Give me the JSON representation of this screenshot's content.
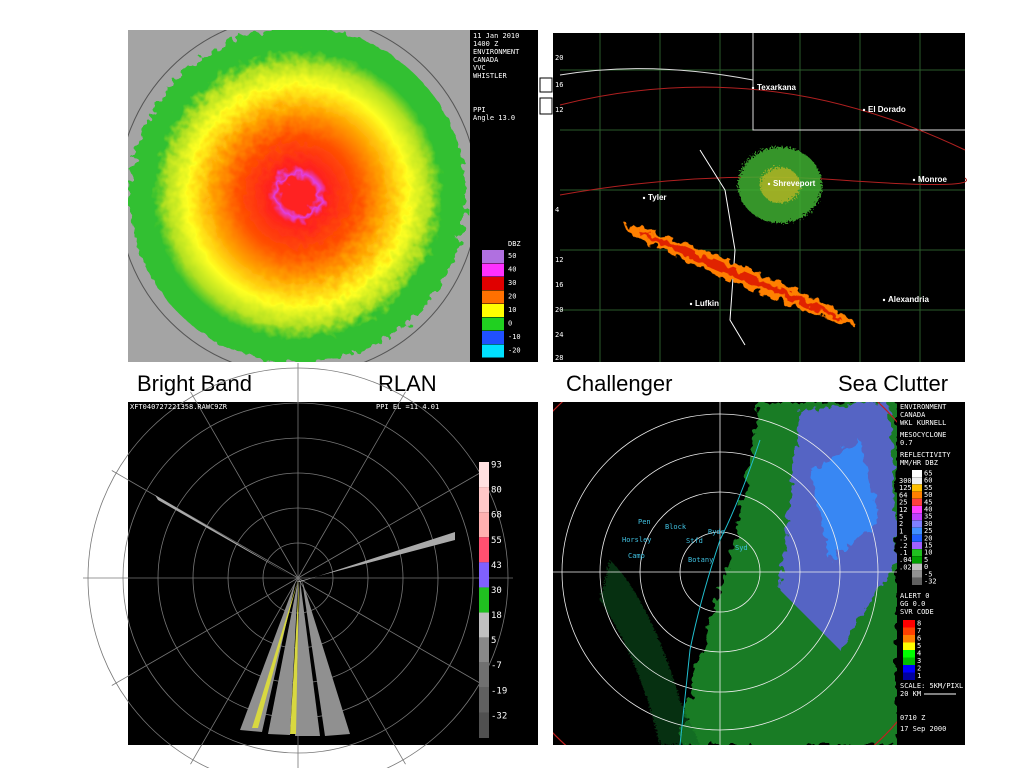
{
  "captions": [
    "Bright Band",
    "RLAN",
    "Challenger",
    "Sea Clutter"
  ],
  "bright_band": {
    "header": [
      "11 Jan 2010",
      "1400 Z",
      "ENVIRONMENT",
      "CANADA",
      "VVC",
      "WHISTLER"
    ],
    "mode": [
      "PPI",
      "Angle 13.0"
    ],
    "legend_title": "DBZ",
    "legend": [
      50,
      40,
      30,
      20,
      10,
      0,
      -10,
      -20
    ],
    "legend_colors": [
      "#b070e0",
      "#ff30ff",
      "#e00000",
      "#ff7000",
      "#ffff00",
      "#20d020",
      "#2050ff",
      "#00e0ff"
    ]
  },
  "challenger": {
    "cities": [
      "Texarkana",
      "El Dorado",
      "Shreveport",
      "Monroe",
      "Tyler",
      "Lufkin",
      "Alexandria"
    ],
    "edge_labels": [
      "20",
      "16",
      "12",
      "4",
      "12",
      "16",
      "20",
      "24",
      "28"
    ]
  },
  "rlan": {
    "header": "XFT040727221358.RAWC9ZR",
    "mode": "PPI  EL =11    4.01",
    "legend": [
      93,
      80,
      68,
      55,
      43,
      30,
      18,
      5,
      -7,
      -19,
      -32
    ],
    "legend_colors": [
      "#ffe0e0",
      "#ffc8c8",
      "#ffb0b0",
      "#ff5070",
      "#8060ff",
      "#20c020",
      "#c0c0c0",
      "#888888",
      "#707070",
      "#606060",
      "#505050"
    ]
  },
  "sea_clutter": {
    "header": [
      "ENVIRONMENT",
      "CANADA",
      "WKL  KURNELL",
      "MESOCYCLONE",
      "0.7",
      "REFLECTIVITY",
      "MM/HR DBZ"
    ],
    "rain": [
      "300",
      "125",
      "64",
      "25",
      "12",
      "5",
      "2",
      "1",
      ".5",
      ".2",
      ".1",
      ".04",
      ".02"
    ],
    "dbz": [
      65,
      60,
      55,
      50,
      45,
      40,
      35,
      30,
      25,
      20,
      15,
      10,
      5,
      0,
      -5,
      -32
    ],
    "dbz_colors": [
      "#ffffff",
      "#f0f0f0",
      "#ffc000",
      "#ff8000",
      "#ff4040",
      "#ff40ff",
      "#c040ff",
      "#8080ff",
      "#4090ff",
      "#2060ff",
      "#a060ff",
      "#20c020",
      "#00a000",
      "#c0c0c0",
      "#909090",
      "#606060"
    ],
    "status": [
      "ALERT    0",
      "GG       0.0",
      "SVR CODE"
    ],
    "svr": [
      8,
      7,
      6,
      5,
      4,
      3,
      2,
      1
    ],
    "svr_colors": [
      "#ff0000",
      "#ff4000",
      "#ff8000",
      "#ffff00",
      "#00ff00",
      "#00c000",
      "#0000ff",
      "#0000a0"
    ],
    "footer": [
      "SCALE: 5KM/PIXL",
      "20 KM",
      "0710 Z",
      "17 Sep 2000"
    ],
    "places": [
      "Pen",
      "Block",
      "Horsley",
      "Ryde",
      "Stfd",
      "Syd",
      "Camp",
      "Botany"
    ]
  }
}
